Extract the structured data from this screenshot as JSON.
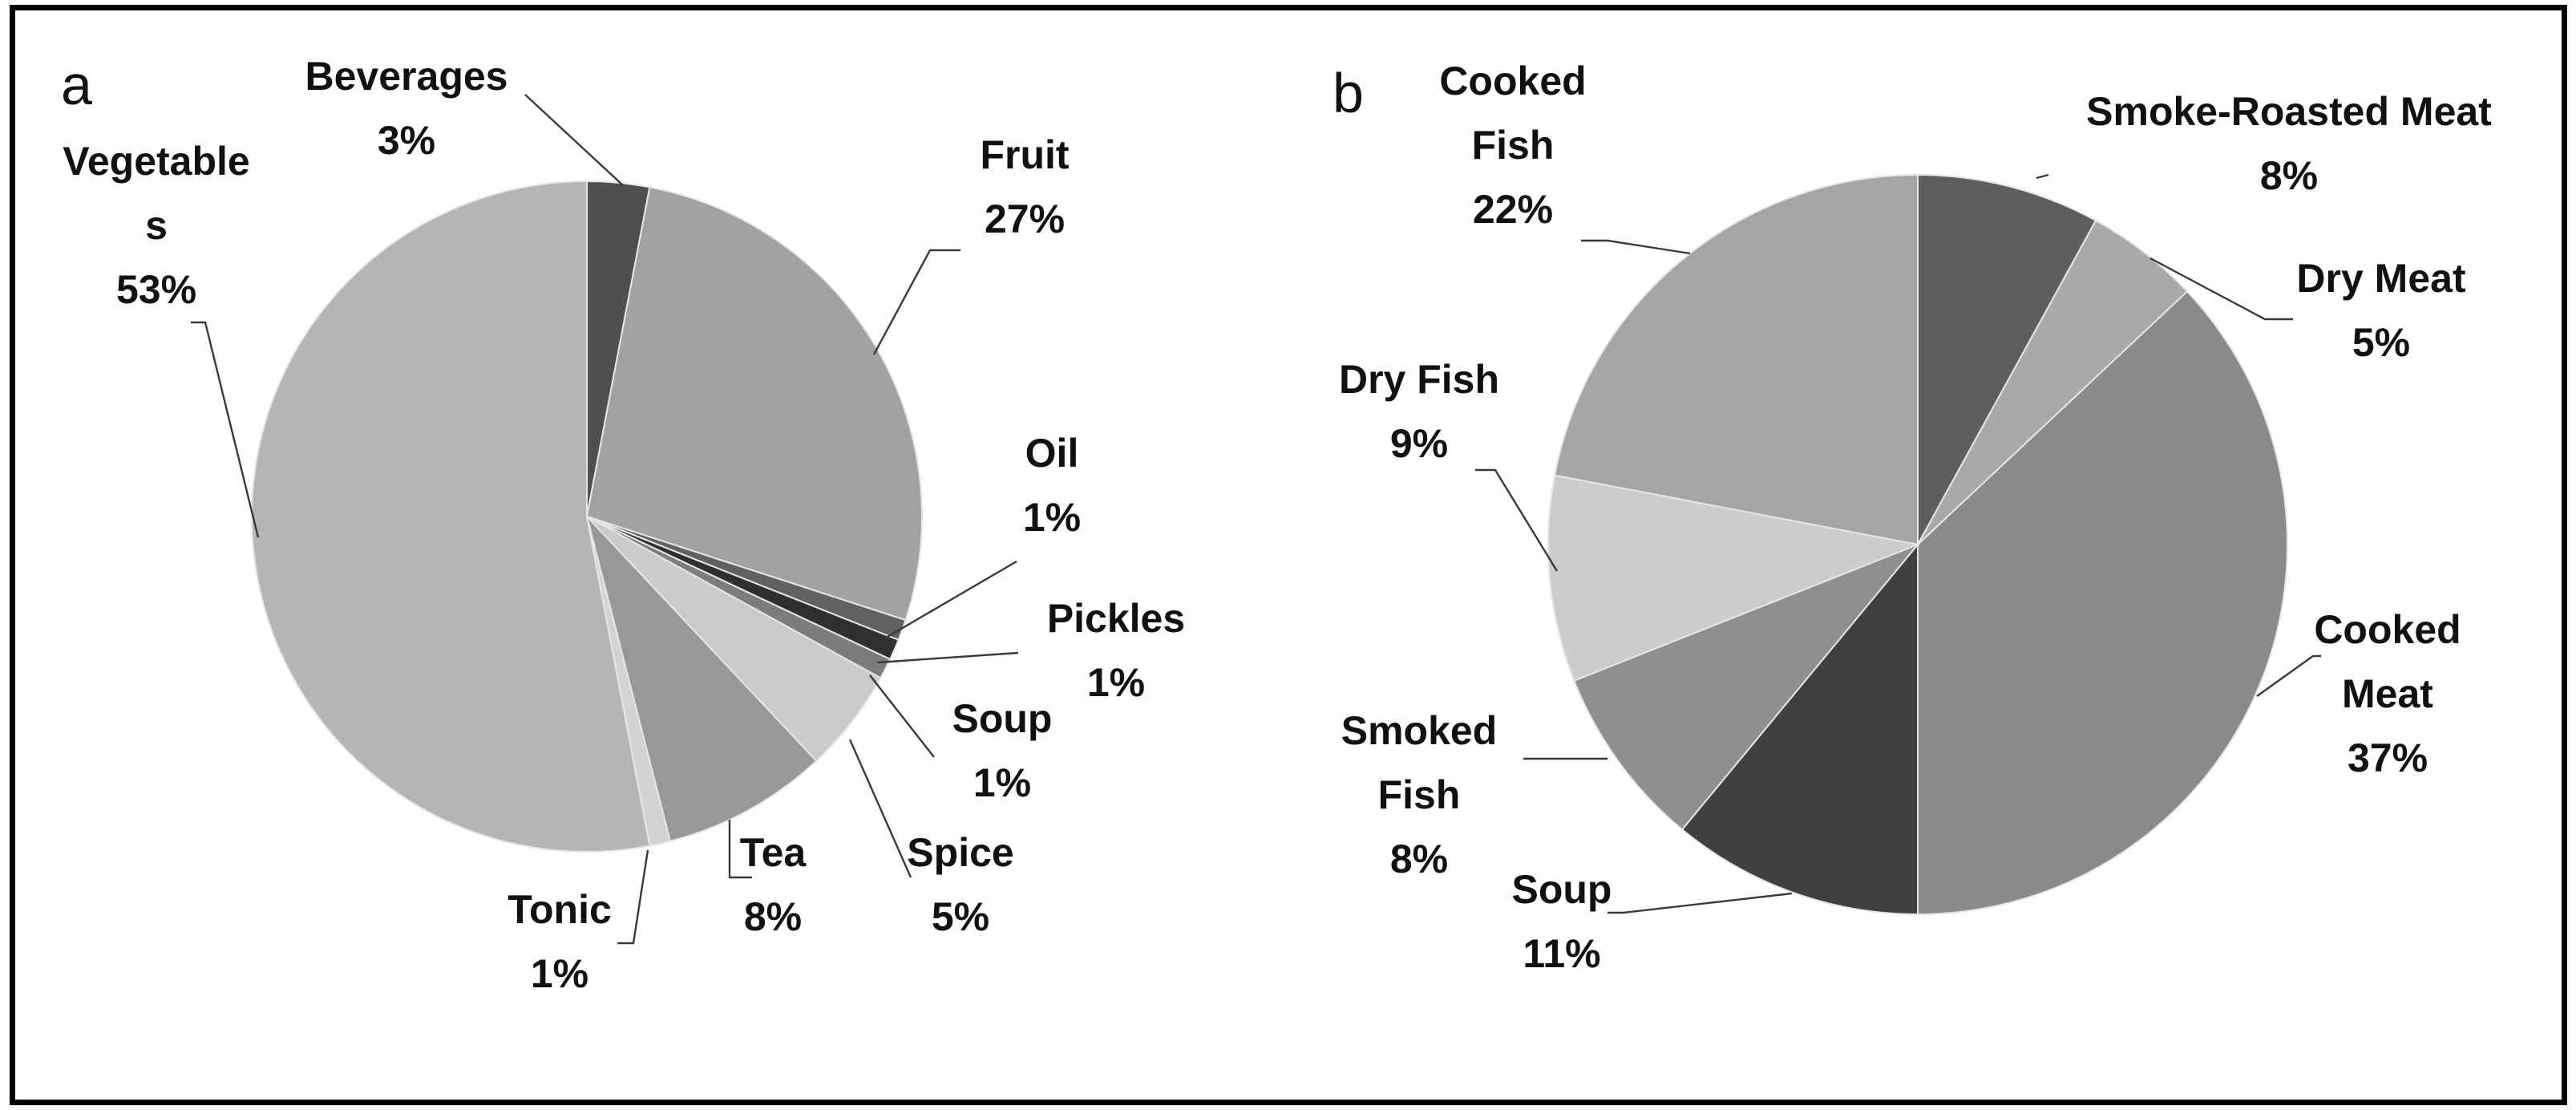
{
  "chart_data": [
    {
      "type": "pie",
      "panel_label": "a",
      "start_angle_deg": 0,
      "direction": "clockwise",
      "slices": [
        {
          "label": [
            "Beverages",
            "3%"
          ],
          "value": 3,
          "color": "#4f4f4f"
        },
        {
          "label": [
            "Fruit",
            "27%"
          ],
          "value": 27,
          "color": "#a2a2a2"
        },
        {
          "label": [
            "Oil",
            "1%"
          ],
          "value": 1,
          "color": "#616161"
        },
        {
          "label": [
            "Pickles",
            "1%"
          ],
          "value": 1,
          "color": "#2f2f2f"
        },
        {
          "label": [
            "Soup",
            "1%"
          ],
          "value": 1,
          "color": "#7c7c7c"
        },
        {
          "label": [
            "Spice",
            "5%"
          ],
          "value": 5,
          "color": "#cbcbcb"
        },
        {
          "label": [
            "Tea",
            "8%"
          ],
          "value": 8,
          "color": "#989898"
        },
        {
          "label": [
            "Tonic",
            "1%"
          ],
          "value": 1,
          "color": "#d3d3d3"
        },
        {
          "label": [
            "Vegetable",
            "s",
            "53%"
          ],
          "value": 53,
          "color": "#b5b5b5"
        }
      ]
    },
    {
      "type": "pie",
      "panel_label": "b",
      "start_angle_deg": 0,
      "direction": "clockwise",
      "slices": [
        {
          "label": [
            "Smoke-Roasted Meat",
            "8%"
          ],
          "value": 8,
          "color": "#5e5e5e"
        },
        {
          "label": [
            "Dry Meat",
            "5%"
          ],
          "value": 5,
          "color": "#a9a9a9"
        },
        {
          "label": [
            "Cooked",
            "Meat",
            "37%"
          ],
          "value": 37,
          "color": "#8a8a8a"
        },
        {
          "label": [
            "Soup",
            "11%"
          ],
          "value": 11,
          "color": "#404040"
        },
        {
          "label": [
            "Smoked",
            "Fish",
            "8%"
          ],
          "value": 8,
          "color": "#8f8f8f"
        },
        {
          "label": [
            "Dry Fish",
            "9%"
          ],
          "value": 9,
          "color": "#cccccc"
        },
        {
          "label": [
            "Cooked",
            "Fish",
            "22%"
          ],
          "value": 22,
          "color": "#a5a5a5"
        }
      ]
    }
  ]
}
